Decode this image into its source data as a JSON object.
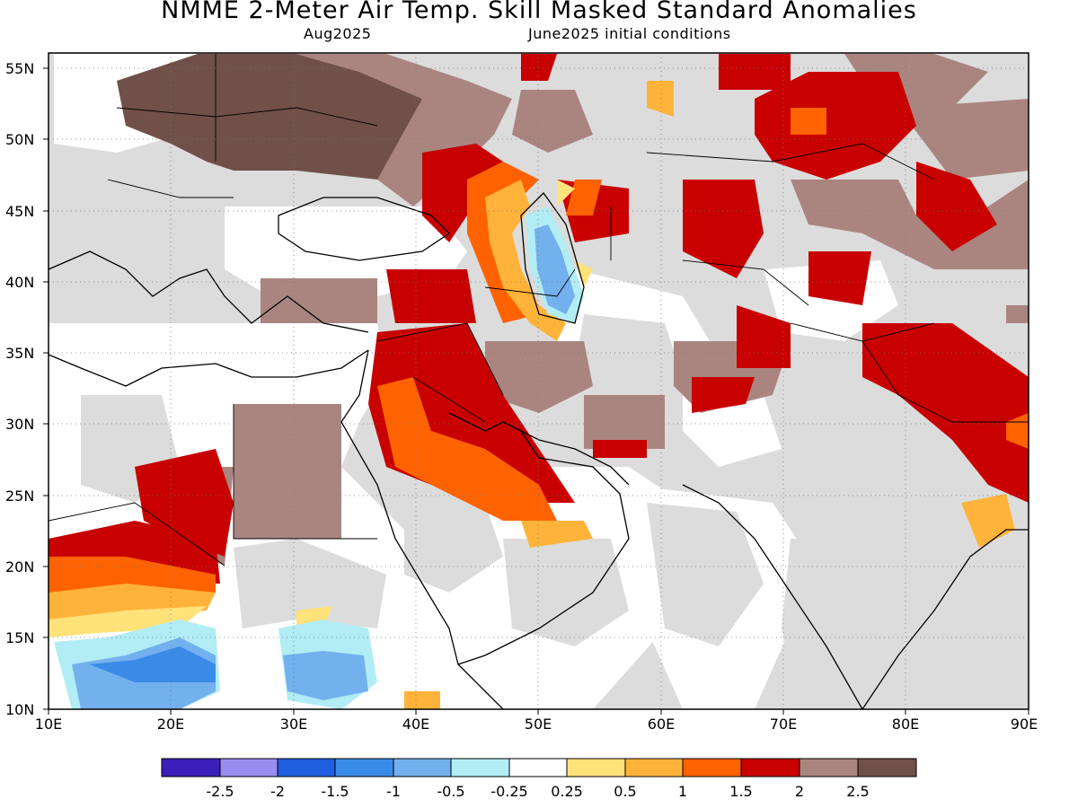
{
  "title": "NMME 2-Meter Air Temp. Skill Masked Standard Anomalies",
  "subtitle_left": "Aug2025",
  "subtitle_right": "June2025 initial conditions",
  "lat_labels": [
    "55N",
    "50N",
    "45N",
    "40N",
    "35N",
    "30N",
    "25N",
    "20N",
    "15N",
    "10N"
  ],
  "lon_labels": [
    "10E",
    "20E",
    "30E",
    "40E",
    "50E",
    "60E",
    "70E",
    "80E",
    "90E"
  ],
  "colorbar": {
    "colors": [
      "#3a1fb8",
      "#9b8cf0",
      "#1f5fe0",
      "#3a8ae8",
      "#73b0ee",
      "#b2ecf4",
      "#ffffff",
      "#ffe27a",
      "#ffb33a",
      "#ff6200",
      "#c80000",
      "#aa8580",
      "#705048"
    ],
    "labels": [
      "-2.5",
      "-2",
      "-1.5",
      "-1",
      "-0.5",
      "-0.25",
      "0.25",
      "0.5",
      "1",
      "1.5",
      "2",
      "2.5"
    ]
  },
  "map_palette": {
    "masked": "#dcdcdc",
    "land_neutral": "#ffffff",
    "anom_0_5": "#ffe27a",
    "anom_1": "#ffb33a",
    "anom_1_5": "#ff6200",
    "anom_2": "#c80000",
    "anom_2_5": "#aa8580",
    "anom_3": "#705048",
    "cool_0_25": "#b2ecf4",
    "cool_0_5": "#73b0ee",
    "cool_1": "#3a8ae8"
  }
}
